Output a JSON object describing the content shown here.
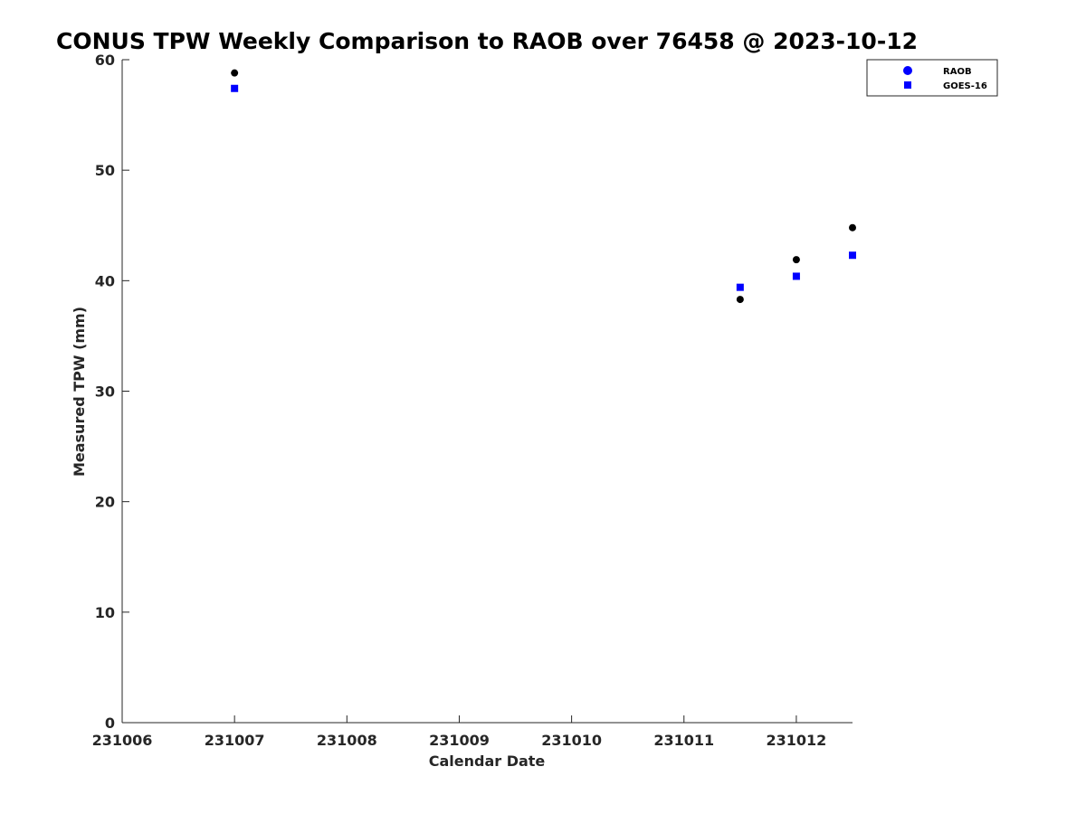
{
  "chart_data": {
    "type": "scatter",
    "title": "CONUS TPW Weekly Comparison to RAOB over 76458 @ 2023-10-12",
    "xlabel": "Calendar Date",
    "ylabel": "Measured TPW (mm)",
    "x_tick_labels": [
      "231006",
      "231007",
      "231008",
      "231009",
      "231010",
      "231011",
      "231012"
    ],
    "x_tick_values": [
      231006,
      231007,
      231008,
      231009,
      231010,
      231011,
      231012
    ],
    "xlim": [
      231006,
      231012.5
    ],
    "y_ticks": [
      0,
      10,
      20,
      30,
      40,
      50,
      60
    ],
    "ylim": [
      0,
      60
    ],
    "grid": false,
    "legend_position": "top-right",
    "series": [
      {
        "name": "RAOB",
        "marker": "circle",
        "color": "#000000",
        "legend_color": "#0000ff",
        "points": [
          {
            "x": 231007,
            "y": 58.8
          },
          {
            "x": 231011.5,
            "y": 38.3
          },
          {
            "x": 231012,
            "y": 41.9
          },
          {
            "x": 231012.5,
            "y": 44.8
          }
        ]
      },
      {
        "name": "GOES-16",
        "marker": "square",
        "color": "#0000ff",
        "legend_color": "#0000ff",
        "points": [
          {
            "x": 231007,
            "y": 57.4
          },
          {
            "x": 231011.5,
            "y": 39.4
          },
          {
            "x": 231012,
            "y": 40.4
          },
          {
            "x": 231012.5,
            "y": 42.3
          }
        ]
      }
    ]
  }
}
